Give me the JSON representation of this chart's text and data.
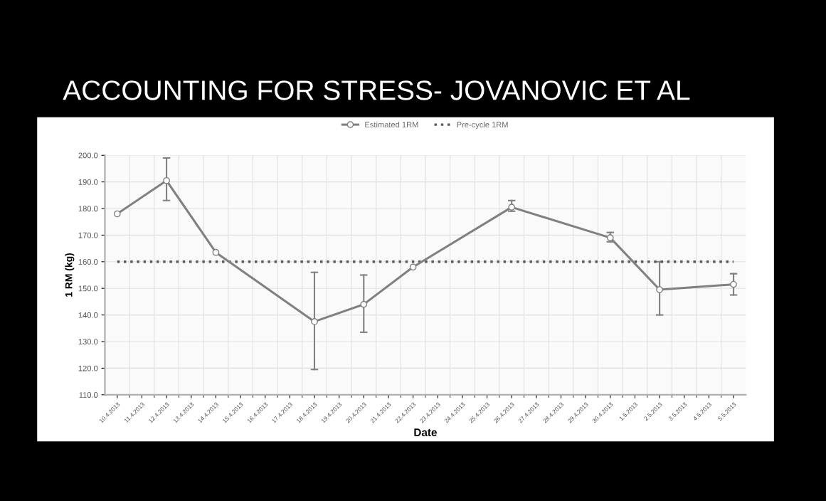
{
  "chart_data": {
    "type": "line",
    "title": "ACCOUNTING FOR STRESS- JOVANOVIC ET AL",
    "xlabel": "Date",
    "ylabel": "1 RM (kg)",
    "categories": [
      "10.4.2013",
      "11.4.2013",
      "12.4.2013",
      "13.4.2013",
      "14.4.2013",
      "15.4.2013",
      "16.4.2013",
      "17.4.2013",
      "18.4.2013",
      "19.4.2013",
      "20.4.2013",
      "21.4.2013",
      "22.4.2013",
      "23.4.2013",
      "24.4.2013",
      "25.4.2013",
      "26.4.2013",
      "27.4.2013",
      "28.4.2013",
      "29.4.2013",
      "30.4.2013",
      "1.5.2013",
      "2.5.2013",
      "3.5.2013",
      "4.5.2013",
      "5.5.2013"
    ],
    "series": [
      {
        "name": "Estimated 1RM",
        "color": "#808080",
        "values": [
          178,
          null,
          190.5,
          null,
          163.5,
          null,
          null,
          null,
          137.5,
          null,
          144,
          null,
          158,
          null,
          null,
          null,
          180.5,
          null,
          null,
          null,
          169,
          null,
          149.5,
          null,
          null,
          151.5
        ],
        "errors": [
          null,
          null,
          [
            183,
            199
          ],
          null,
          null,
          null,
          null,
          null,
          [
            119.5,
            156
          ],
          null,
          [
            133.5,
            155
          ],
          null,
          null,
          null,
          null,
          null,
          [
            179,
            183
          ],
          null,
          null,
          null,
          [
            167.5,
            171
          ],
          null,
          [
            140,
            160
          ],
          null,
          null,
          [
            147.5,
            155.5
          ]
        ]
      }
    ],
    "ref_lines": [
      {
        "axis": "y",
        "value": 160,
        "label": "Pre-cycle 1RM",
        "color": "#595959",
        "line_style": "dotted"
      }
    ],
    "ylim": [
      110,
      200
    ],
    "yticks": [
      {
        "value": 110,
        "label": "110.0"
      },
      {
        "value": 120,
        "label": "120.0"
      },
      {
        "value": 130,
        "label": "130.0"
      },
      {
        "value": 140,
        "label": "140.0"
      },
      {
        "value": 150,
        "label": "150.0"
      },
      {
        "value": 160,
        "label": "160.0"
      },
      {
        "value": 170,
        "label": "170.0"
      },
      {
        "value": 180,
        "label": "180.0"
      },
      {
        "value": 190,
        "label": "190.0"
      },
      {
        "value": 200,
        "label": "200.0"
      }
    ],
    "grid": true,
    "legend": "top",
    "marker": "circle",
    "line_style": "solid"
  }
}
